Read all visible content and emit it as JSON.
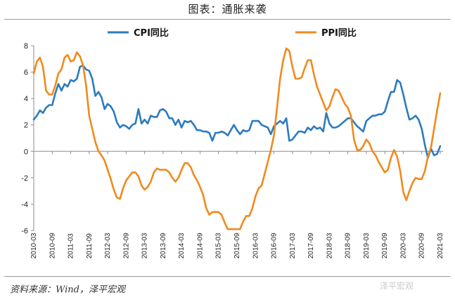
{
  "header": {
    "title": "图表：通胀来袭"
  },
  "footer": {
    "source": "资料来源：Wind，泽平宏观",
    "watermark": "泽平宏观"
  },
  "chart_data": {
    "type": "line",
    "x_tick_labels": [
      "2010-03",
      "2010-09",
      "2011-03",
      "2011-09",
      "2012-03",
      "2012-09",
      "2013-03",
      "2013-09",
      "2014-03",
      "2014-09",
      "2015-03",
      "2015-09",
      "2016-03",
      "2016-09",
      "2017-03",
      "2017-09",
      "2018-03",
      "2018-09",
      "2019-03",
      "2019-09",
      "2020-03",
      "2020-09",
      "2021-03"
    ],
    "ylim": [
      -6,
      8
    ],
    "y_ticks": [
      -6,
      -4,
      -2,
      0,
      2,
      4,
      6,
      8
    ],
    "grid": false,
    "legend_position": "top",
    "series": [
      {
        "name": "CPI同比",
        "color": "#2C7BBF",
        "values": [
          [
            0,
            2.4
          ],
          [
            1,
            2.7
          ],
          [
            2,
            3.1
          ],
          [
            3,
            2.9
          ],
          [
            4,
            3.3
          ],
          [
            5,
            3.5
          ],
          [
            6,
            3.5
          ],
          [
            7,
            4.4
          ],
          [
            8,
            5.1
          ],
          [
            9,
            4.6
          ],
          [
            10,
            5.1
          ],
          [
            11,
            4.9
          ],
          [
            12,
            5.4
          ],
          [
            13,
            5.3
          ],
          [
            14,
            5.5
          ],
          [
            15,
            6.4
          ],
          [
            16,
            6.5
          ],
          [
            17,
            6.2
          ],
          [
            18,
            6.1
          ],
          [
            19,
            5.5
          ],
          [
            20,
            4.2
          ],
          [
            21,
            4.5
          ],
          [
            22,
            4.1
          ],
          [
            23,
            3.2
          ],
          [
            24,
            3.6
          ],
          [
            25,
            3.4
          ],
          [
            26,
            3.0
          ],
          [
            27,
            2.2
          ],
          [
            28,
            1.8
          ],
          [
            29,
            2.0
          ],
          [
            30,
            1.9
          ],
          [
            31,
            1.7
          ],
          [
            32,
            2.0
          ],
          [
            33,
            2.1
          ],
          [
            34,
            3.2
          ],
          [
            35,
            2.1
          ],
          [
            36,
            2.4
          ],
          [
            37,
            2.1
          ],
          [
            38,
            2.7
          ],
          [
            39,
            2.6
          ],
          [
            40,
            2.6
          ],
          [
            41,
            3.1
          ],
          [
            42,
            3.2
          ],
          [
            43,
            3.0
          ],
          [
            44,
            2.5
          ],
          [
            45,
            2.5
          ],
          [
            46,
            2.0
          ],
          [
            47,
            2.4
          ],
          [
            48,
            1.8
          ],
          [
            49,
            2.3
          ],
          [
            50,
            2.2
          ],
          [
            51,
            2.3
          ],
          [
            52,
            2.0
          ],
          [
            53,
            1.6
          ],
          [
            54,
            1.6
          ],
          [
            55,
            1.5
          ],
          [
            56,
            1.5
          ],
          [
            57,
            1.4
          ],
          [
            58,
            0.8
          ],
          [
            59,
            1.4
          ],
          [
            60,
            1.4
          ],
          [
            61,
            1.5
          ],
          [
            62,
            1.4
          ],
          [
            63,
            1.2
          ],
          [
            64,
            1.6
          ],
          [
            65,
            2.0
          ],
          [
            66,
            1.6
          ],
          [
            67,
            1.3
          ],
          [
            68,
            1.6
          ],
          [
            69,
            1.5
          ],
          [
            70,
            1.6
          ],
          [
            71,
            2.3
          ],
          [
            72,
            2.3
          ],
          [
            73,
            2.3
          ],
          [
            74,
            2.0
          ],
          [
            75,
            1.9
          ],
          [
            76,
            1.8
          ],
          [
            77,
            1.3
          ],
          [
            78,
            1.9
          ],
          [
            79,
            2.1
          ],
          [
            80,
            2.3
          ],
          [
            81,
            2.1
          ],
          [
            82,
            2.5
          ],
          [
            83,
            0.8
          ],
          [
            84,
            0.9
          ],
          [
            85,
            1.2
          ],
          [
            86,
            1.5
          ],
          [
            87,
            1.5
          ],
          [
            88,
            1.4
          ],
          [
            89,
            1.8
          ],
          [
            90,
            1.6
          ],
          [
            91,
            1.9
          ],
          [
            92,
            1.7
          ],
          [
            93,
            1.8
          ],
          [
            94,
            1.5
          ],
          [
            95,
            2.9
          ],
          [
            96,
            2.1
          ],
          [
            97,
            1.8
          ],
          [
            98,
            1.8
          ],
          [
            99,
            1.9
          ],
          [
            100,
            2.1
          ],
          [
            101,
            2.3
          ],
          [
            102,
            2.5
          ],
          [
            103,
            2.5
          ],
          [
            104,
            2.2
          ],
          [
            105,
            1.9
          ],
          [
            106,
            1.7
          ],
          [
            107,
            1.5
          ],
          [
            108,
            2.3
          ],
          [
            109,
            2.5
          ],
          [
            110,
            2.7
          ],
          [
            111,
            2.7
          ],
          [
            112,
            2.8
          ],
          [
            113,
            2.8
          ],
          [
            114,
            3.0
          ],
          [
            115,
            3.8
          ],
          [
            116,
            4.5
          ],
          [
            117,
            4.5
          ],
          [
            118,
            5.4
          ],
          [
            119,
            5.2
          ],
          [
            120,
            4.3
          ],
          [
            121,
            3.3
          ],
          [
            122,
            2.4
          ],
          [
            123,
            2.5
          ],
          [
            124,
            2.7
          ],
          [
            125,
            2.4
          ],
          [
            126,
            1.7
          ],
          [
            127,
            0.5
          ],
          [
            128,
            -0.5
          ],
          [
            129,
            0.2
          ],
          [
            130,
            -0.3
          ],
          [
            131,
            -0.2
          ],
          [
            132,
            0.4
          ]
        ]
      },
      {
        "name": "PPI同比",
        "color": "#F08A1E",
        "values": [
          [
            0,
            5.9
          ],
          [
            1,
            6.8
          ],
          [
            2,
            7.1
          ],
          [
            3,
            6.4
          ],
          [
            4,
            4.6
          ],
          [
            5,
            4.3
          ],
          [
            6,
            4.3
          ],
          [
            7,
            5.0
          ],
          [
            8,
            5.9
          ],
          [
            9,
            6.2
          ],
          [
            10,
            7.1
          ],
          [
            11,
            7.3
          ],
          [
            12,
            6.8
          ],
          [
            13,
            6.9
          ],
          [
            14,
            7.5
          ],
          [
            15,
            7.2
          ],
          [
            16,
            6.5
          ],
          [
            17,
            5.0
          ],
          [
            18,
            2.7
          ],
          [
            19,
            1.7
          ],
          [
            20,
            0.7
          ],
          [
            21,
            0.0
          ],
          [
            22,
            -0.3
          ],
          [
            23,
            -0.7
          ],
          [
            24,
            -1.4
          ],
          [
            25,
            -2.1
          ],
          [
            26,
            -2.9
          ],
          [
            27,
            -3.5
          ],
          [
            28,
            -3.6
          ],
          [
            29,
            -2.8
          ],
          [
            30,
            -2.2
          ],
          [
            31,
            -1.9
          ],
          [
            32,
            -1.6
          ],
          [
            33,
            -1.6
          ],
          [
            34,
            -1.9
          ],
          [
            35,
            -2.6
          ],
          [
            36,
            -2.9
          ],
          [
            37,
            -2.7
          ],
          [
            38,
            -2.3
          ],
          [
            39,
            -1.6
          ],
          [
            40,
            -1.3
          ],
          [
            41,
            -1.4
          ],
          [
            42,
            -1.4
          ],
          [
            43,
            -1.4
          ],
          [
            44,
            -1.6
          ],
          [
            45,
            -2.0
          ],
          [
            46,
            -2.3
          ],
          [
            47,
            -2.0
          ],
          [
            48,
            -1.4
          ],
          [
            49,
            -0.9
          ],
          [
            50,
            -0.9
          ],
          [
            51,
            -1.2
          ],
          [
            52,
            -1.8
          ],
          [
            53,
            -2.2
          ],
          [
            54,
            -2.7
          ],
          [
            55,
            -3.3
          ],
          [
            56,
            -4.3
          ],
          [
            57,
            -4.8
          ],
          [
            58,
            -4.6
          ],
          [
            59,
            -4.6
          ],
          [
            60,
            -4.6
          ],
          [
            61,
            -4.8
          ],
          [
            62,
            -5.4
          ],
          [
            63,
            -5.9
          ],
          [
            64,
            -5.9
          ],
          [
            65,
            -5.9
          ],
          [
            66,
            -5.9
          ],
          [
            67,
            -5.9
          ],
          [
            68,
            -5.3
          ],
          [
            69,
            -4.9
          ],
          [
            70,
            -4.9
          ],
          [
            71,
            -4.3
          ],
          [
            72,
            -3.4
          ],
          [
            73,
            -2.8
          ],
          [
            74,
            -2.6
          ],
          [
            75,
            -1.7
          ],
          [
            76,
            -0.8
          ],
          [
            77,
            0.1
          ],
          [
            78,
            1.2
          ],
          [
            79,
            3.3
          ],
          [
            80,
            5.5
          ],
          [
            81,
            6.9
          ],
          [
            82,
            7.8
          ],
          [
            83,
            7.6
          ],
          [
            84,
            6.4
          ],
          [
            85,
            5.5
          ],
          [
            86,
            5.5
          ],
          [
            87,
            5.6
          ],
          [
            88,
            6.3
          ],
          [
            89,
            6.9
          ],
          [
            90,
            6.9
          ],
          [
            91,
            5.8
          ],
          [
            92,
            4.9
          ],
          [
            93,
            4.3
          ],
          [
            94,
            3.7
          ],
          [
            95,
            3.1
          ],
          [
            96,
            3.4
          ],
          [
            97,
            4.1
          ],
          [
            98,
            4.7
          ],
          [
            99,
            4.6
          ],
          [
            100,
            4.1
          ],
          [
            101,
            3.6
          ],
          [
            102,
            3.3
          ],
          [
            103,
            2.7
          ],
          [
            104,
            0.9
          ],
          [
            105,
            0.1
          ],
          [
            106,
            0.1
          ],
          [
            107,
            0.4
          ],
          [
            108,
            0.9
          ],
          [
            109,
            0.6
          ],
          [
            110,
            0.0
          ],
          [
            111,
            -0.3
          ],
          [
            112,
            -0.8
          ],
          [
            113,
            -1.2
          ],
          [
            114,
            -1.6
          ],
          [
            115,
            -1.4
          ],
          [
            116,
            -0.5
          ],
          [
            117,
            0.1
          ],
          [
            118,
            -0.4
          ],
          [
            119,
            -1.5
          ],
          [
            120,
            -3.1
          ],
          [
            121,
            -3.7
          ],
          [
            122,
            -3.0
          ],
          [
            123,
            -2.4
          ],
          [
            124,
            -2.0
          ],
          [
            125,
            -2.1
          ],
          [
            126,
            -2.1
          ],
          [
            127,
            -1.5
          ],
          [
            128,
            -0.4
          ],
          [
            129,
            0.3
          ],
          [
            130,
            1.7
          ],
          [
            131,
            3.1
          ],
          [
            132,
            4.4
          ]
        ]
      }
    ]
  }
}
